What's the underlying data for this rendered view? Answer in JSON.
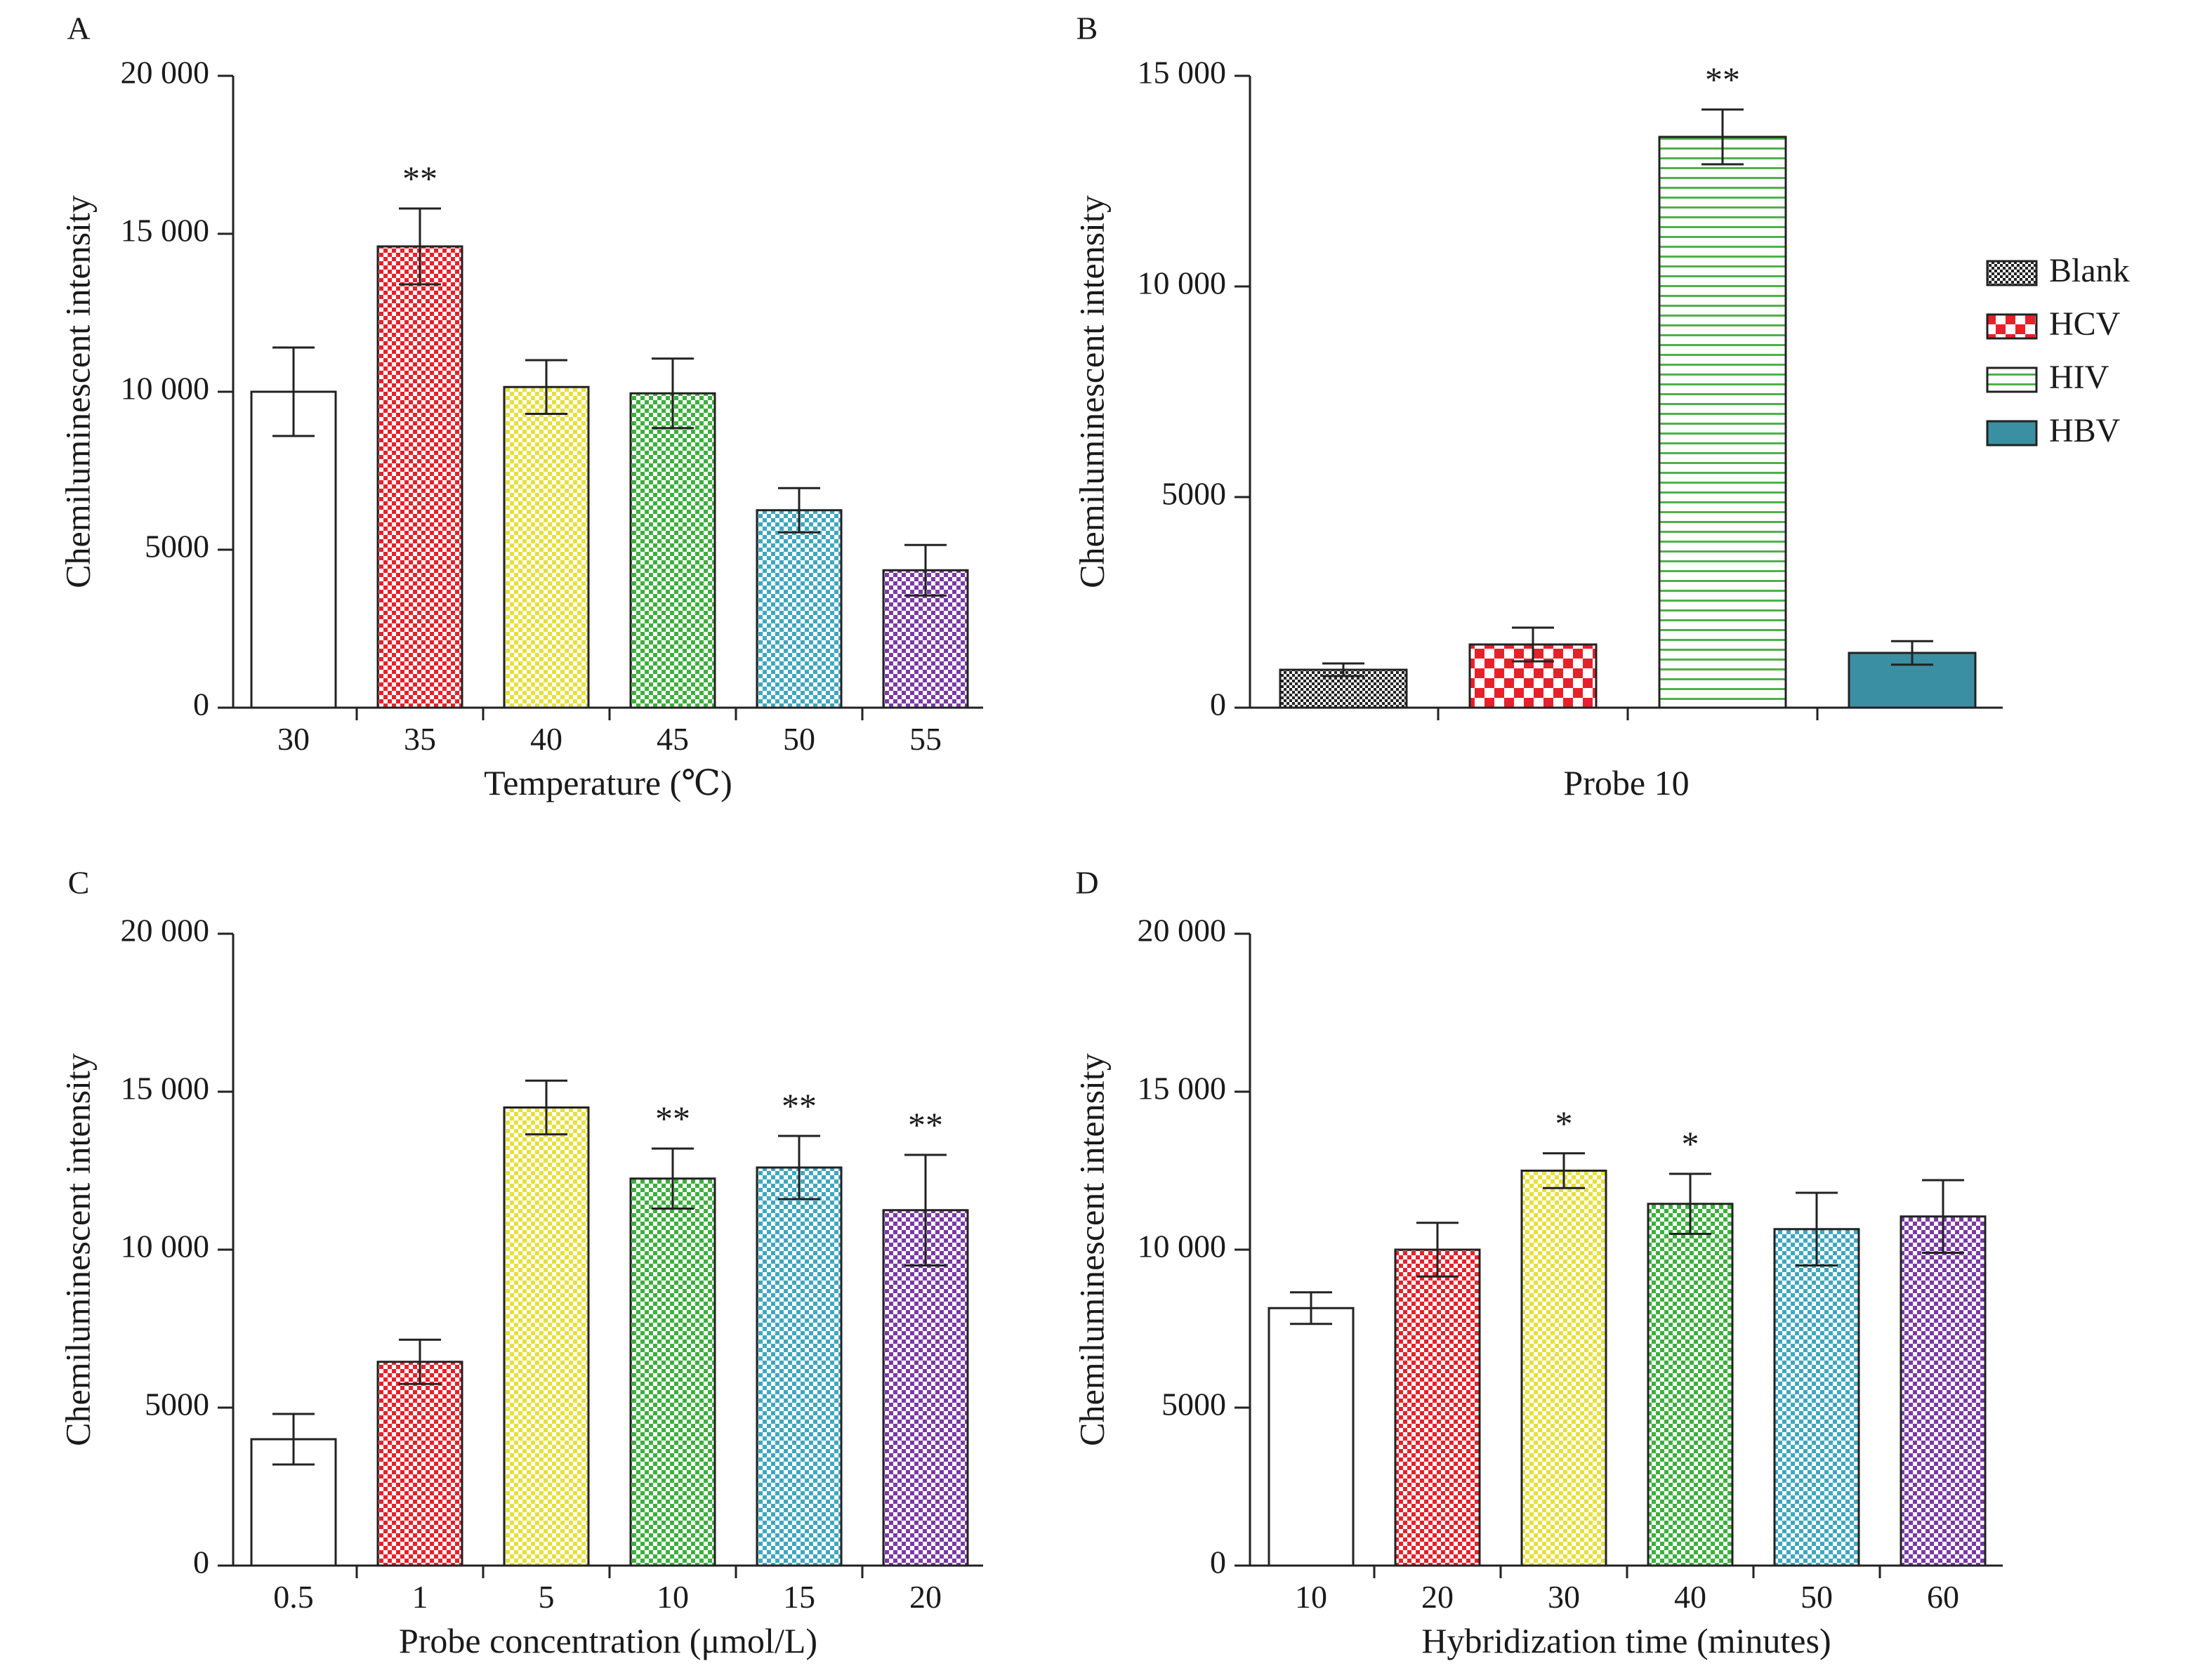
{
  "chart_data": [
    {
      "panel_label": "A",
      "type": "bar",
      "xlabel": "Temperature (℃)",
      "ylabel": "Chemiluminescent intensity",
      "ylim": [
        0,
        20000
      ],
      "yticks": [
        0,
        5000,
        10000,
        15000,
        20000
      ],
      "ytick_labels": [
        "0",
        "5000",
        "10 000",
        "15 000",
        "20 000"
      ],
      "categories": [
        "30",
        "35",
        "40",
        "45",
        "50",
        "55"
      ],
      "values": [
        10000,
        14600,
        10150,
        9950,
        6250,
        4350
      ],
      "errors": [
        1400,
        1200,
        850,
        1100,
        700,
        800
      ],
      "annotations": [
        "",
        "**",
        "",
        "",
        "",
        ""
      ],
      "fills": [
        "white",
        "red",
        "yellow",
        "green",
        "cyan",
        "purple"
      ]
    },
    {
      "panel_label": "B",
      "type": "bar",
      "xlabel": "Probe 10",
      "ylabel": "Chemiluminescent intensity",
      "ylim": [
        0,
        15000
      ],
      "yticks": [
        0,
        5000,
        10000,
        15000
      ],
      "ytick_labels": [
        "0",
        "5000",
        "10 000",
        "15 000"
      ],
      "categories": [
        "Blank",
        "HCV",
        "HIV",
        "HBV"
      ],
      "values": [
        900,
        1500,
        13550,
        1300
      ],
      "errors": [
        150,
        400,
        650,
        280
      ],
      "annotations": [
        "",
        "",
        "**",
        ""
      ],
      "fills": [
        "blank",
        "hcv",
        "hiv",
        "hbv"
      ],
      "legend": {
        "position": "right",
        "entries": [
          "Blank",
          "HCV",
          "HIV",
          "HBV"
        ]
      }
    },
    {
      "panel_label": "C",
      "type": "bar",
      "xlabel": "Probe concentration (μmol/L)",
      "ylabel": "Chemiluminescent intensity",
      "ylim": [
        0,
        20000
      ],
      "yticks": [
        0,
        5000,
        10000,
        15000,
        20000
      ],
      "ytick_labels": [
        "0",
        "5000",
        "10 000",
        "15 000",
        "20 000"
      ],
      "categories": [
        "0.5",
        "1",
        "5",
        "10",
        "15",
        "20"
      ],
      "values": [
        4000,
        6450,
        14500,
        12250,
        12600,
        11250
      ],
      "errors": [
        800,
        700,
        850,
        950,
        1000,
        1750
      ],
      "annotations": [
        "",
        "",
        "",
        "**",
        "**",
        "**"
      ],
      "fills": [
        "white",
        "red",
        "yellow",
        "green",
        "cyan",
        "purple"
      ]
    },
    {
      "panel_label": "D",
      "type": "bar",
      "xlabel": "Hybridization time (minutes)",
      "ylabel": "Chemiluminescent intensity",
      "ylim": [
        0,
        20000
      ],
      "yticks": [
        0,
        5000,
        10000,
        15000,
        20000
      ],
      "ytick_labels": [
        "0",
        "5000",
        "10 000",
        "15 000",
        "20 000"
      ],
      "categories": [
        "10",
        "20",
        "30",
        "40",
        "50",
        "60"
      ],
      "values": [
        8150,
        10000,
        12500,
        11450,
        10650,
        11050
      ],
      "errors": [
        500,
        850,
        550,
        950,
        1150,
        1150
      ],
      "annotations": [
        "",
        "",
        "*",
        "*",
        "",
        ""
      ],
      "fills": [
        "white",
        "red",
        "yellow",
        "green",
        "cyan",
        "purple"
      ]
    }
  ]
}
